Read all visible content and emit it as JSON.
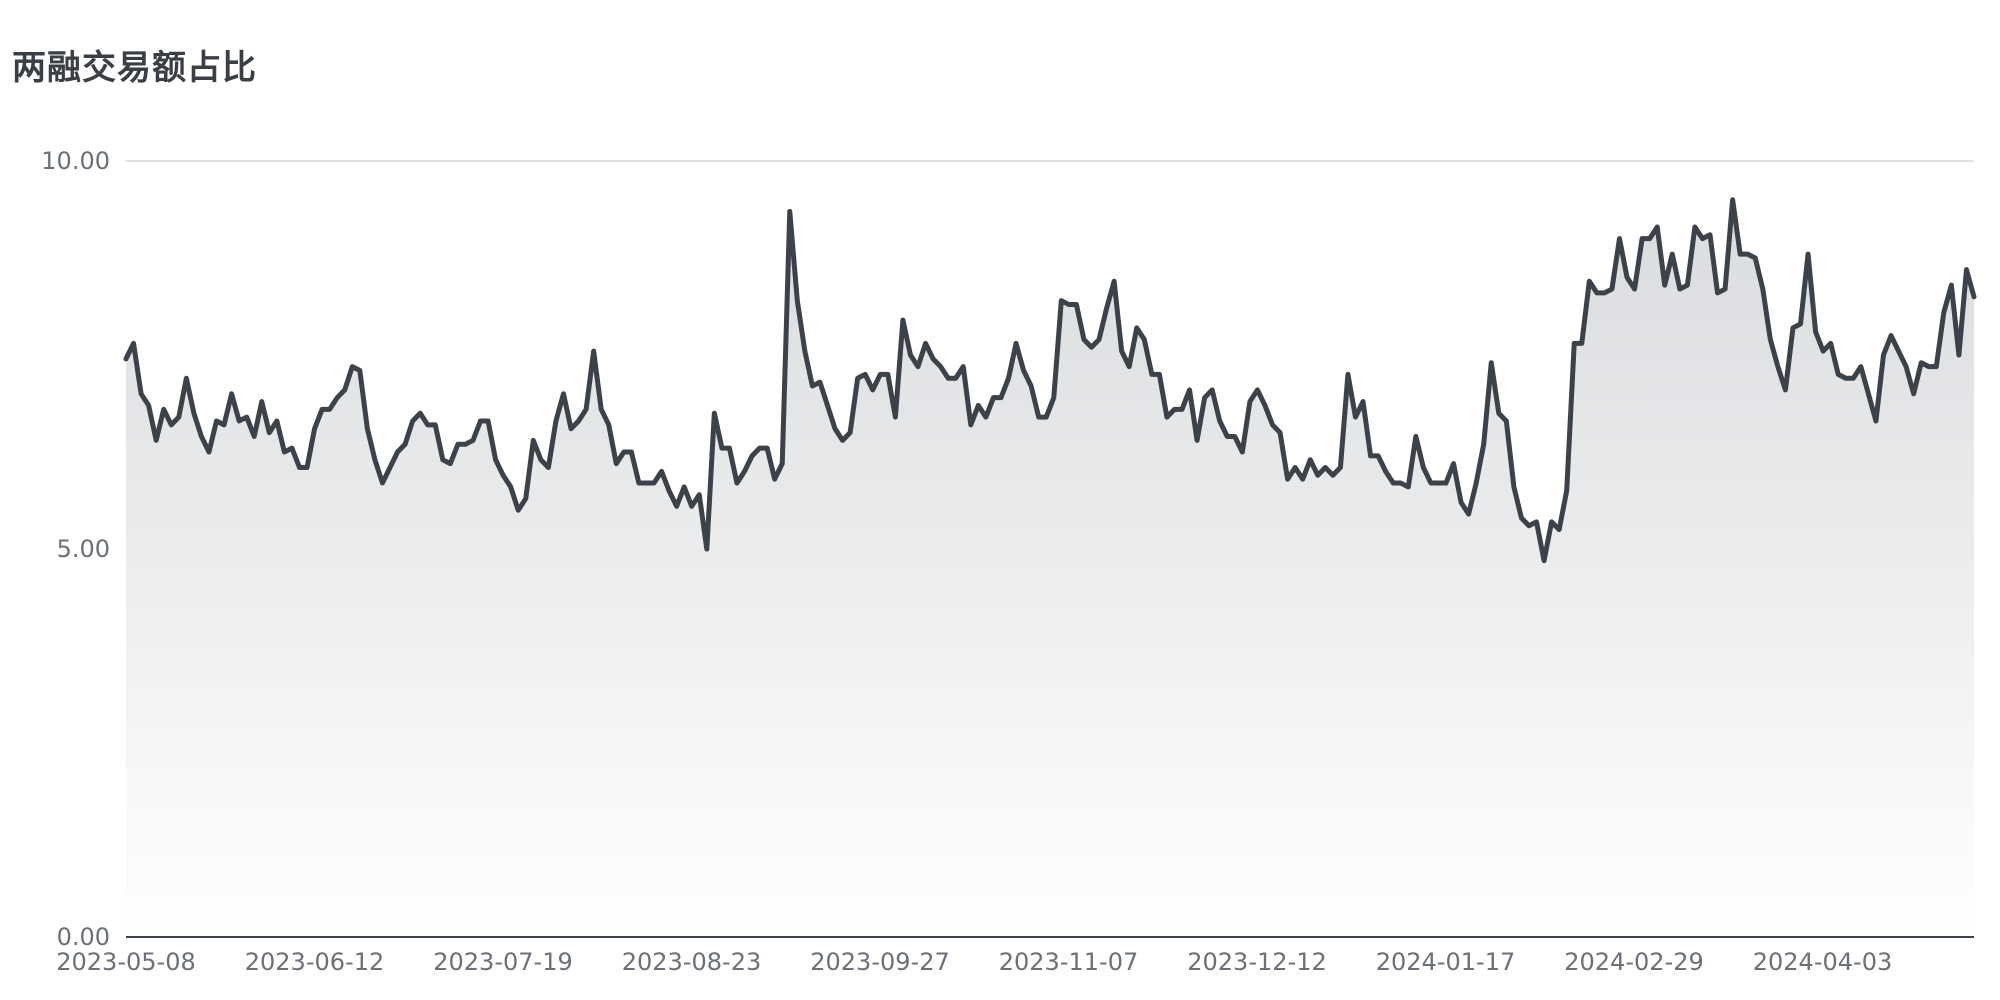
{
  "chart_data": {
    "type": "area",
    "title": "两融交易额占比",
    "xlabel": "",
    "ylabel": "",
    "ylim": [
      0,
      10
    ],
    "y_ticks": [
      "0.00",
      "5.00",
      "10.00"
    ],
    "grid": true,
    "legend": "none",
    "x_tick_labels": [
      "2023-05-08",
      "2023-06-12",
      "2023-07-19",
      "2023-08-23",
      "2023-09-27",
      "2023-11-07",
      "2023-12-12",
      "2024-01-17",
      "2024-02-29",
      "2024-04-03"
    ],
    "colors": {
      "line": "#3b4249",
      "area_top": "#d9dbde",
      "area_bottom": "#ffffff",
      "grid": "#d3d6da",
      "axis": "#3b4249",
      "title": "#3a3f45",
      "tick": "#6b7079"
    },
    "series": [
      {
        "values": [
          7.45,
          7.65,
          7.0,
          6.85,
          6.4,
          6.8,
          6.6,
          6.7,
          7.2,
          6.75,
          6.45,
          6.25,
          6.65,
          6.6,
          7.0,
          6.65,
          6.7,
          6.45,
          6.9,
          6.5,
          6.65,
          6.25,
          6.3,
          6.05,
          6.05,
          6.55,
          6.8,
          6.8,
          6.95,
          7.05,
          7.35,
          7.3,
          6.55,
          6.15,
          5.85,
          6.05,
          6.25,
          6.35,
          6.65,
          6.75,
          6.6,
          6.6,
          6.15,
          6.1,
          6.35,
          6.35,
          6.4,
          6.65,
          6.65,
          6.15,
          5.95,
          5.8,
          5.5,
          5.65,
          6.4,
          6.15,
          6.05,
          6.65,
          7.0,
          6.55,
          6.65,
          6.8,
          7.55,
          6.8,
          6.6,
          6.1,
          6.25,
          6.25,
          5.85,
          5.85,
          5.85,
          6.0,
          5.75,
          5.55,
          5.8,
          5.55,
          5.7,
          5.0,
          6.75,
          6.3,
          6.3,
          5.85,
          6.0,
          6.2,
          6.3,
          6.3,
          5.9,
          6.1,
          9.35,
          8.2,
          7.55,
          7.1,
          7.15,
          6.85,
          6.55,
          6.4,
          6.5,
          7.2,
          7.25,
          7.05,
          7.25,
          7.25,
          6.7,
          7.95,
          7.5,
          7.35,
          7.65,
          7.45,
          7.35,
          7.2,
          7.2,
          7.35,
          6.6,
          6.85,
          6.7,
          6.95,
          6.95,
          7.2,
          7.65,
          7.3,
          7.1,
          6.7,
          6.7,
          6.95,
          8.2,
          8.15,
          8.15,
          7.7,
          7.6,
          7.7,
          8.1,
          8.45,
          7.55,
          7.35,
          7.85,
          7.7,
          7.25,
          7.25,
          6.7,
          6.8,
          6.8,
          7.05,
          6.4,
          6.95,
          7.05,
          6.65,
          6.45,
          6.45,
          6.25,
          6.9,
          7.05,
          6.85,
          6.6,
          6.5,
          5.9,
          6.05,
          5.9,
          6.15,
          5.95,
          6.05,
          5.95,
          6.05,
          7.25,
          6.7,
          6.9,
          6.2,
          6.2,
          6.0,
          5.85,
          5.85,
          5.8,
          6.45,
          6.05,
          5.85,
          5.85,
          5.85,
          6.1,
          5.6,
          5.45,
          5.85,
          6.35,
          7.4,
          6.75,
          6.65,
          5.8,
          5.4,
          5.3,
          5.35,
          4.85,
          5.35,
          5.25,
          5.75,
          7.65,
          7.65,
          8.45,
          8.3,
          8.3,
          8.35,
          9.0,
          8.5,
          8.35,
          9.0,
          9.0,
          9.15,
          8.4,
          8.8,
          8.35,
          8.4,
          9.15,
          9.0,
          9.05,
          8.3,
          8.35,
          9.5,
          8.8,
          8.8,
          8.75,
          8.35,
          7.7,
          7.35,
          7.05,
          7.85,
          7.9,
          8.8,
          7.8,
          7.55,
          7.65,
          7.25,
          7.2,
          7.2,
          7.35,
          7.0,
          6.65,
          7.5,
          7.75,
          7.55,
          7.35,
          7.0,
          7.4,
          7.35,
          7.35,
          8.05,
          8.4,
          7.5,
          8.6,
          8.25
        ]
      }
    ]
  }
}
